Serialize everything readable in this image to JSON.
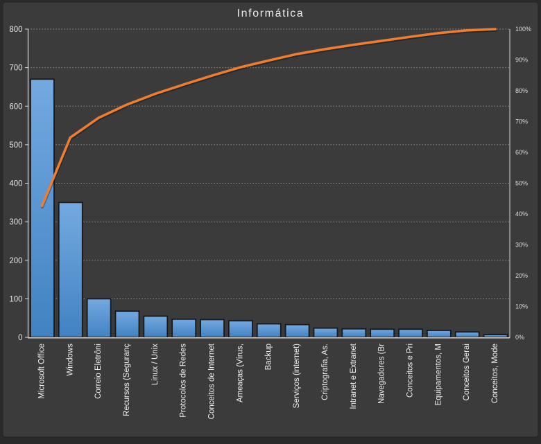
{
  "chart_data": {
    "type": "bar",
    "title": "Informática",
    "categories": [
      "Microsoft Office",
      "Windows",
      "Correio Eletrôni",
      "Recursos (Seguranç",
      "Linux / Unix",
      "Protocolos de Redes",
      "Conceitos de Internet",
      "Ameaças (Vírus,",
      "Backup",
      "Serviços (internet)",
      "Criptografia, As.",
      "Intranet e Extranet",
      "Navegadores (Br",
      "Conceitos e Pri",
      "Equipamentos, M",
      "Conceitos Gerai",
      "Conceitos, Mode"
    ],
    "values": [
      670,
      350,
      100,
      68,
      55,
      47,
      46,
      43,
      35,
      33,
      24,
      22,
      21,
      21,
      18,
      14,
      7
    ],
    "series": [
      {
        "name": "frequency-bars",
        "type": "bar",
        "values": [
          670,
          350,
          100,
          68,
          55,
          47,
          46,
          43,
          35,
          33,
          24,
          22,
          21,
          21,
          18,
          14,
          7
        ]
      },
      {
        "name": "cumulative-percent-line",
        "type": "line",
        "values": [
          42.6,
          64.8,
          71.2,
          75.5,
          79.0,
          82.0,
          84.9,
          87.6,
          89.8,
          91.9,
          93.5,
          94.9,
          96.2,
          97.5,
          98.7,
          99.6,
          100.0
        ]
      }
    ],
    "left_axis": {
      "min": 0,
      "max": 800,
      "tick_step": 100,
      "ticks": [
        "0",
        "100",
        "200",
        "300",
        "400",
        "500",
        "600",
        "700",
        "800"
      ]
    },
    "right_axis": {
      "ticks": [
        "0%",
        "10%",
        "20%",
        "30%",
        "40%",
        "50%",
        "60%",
        "70%",
        "80%",
        "90%",
        "100%"
      ]
    },
    "grid": true,
    "legend": "none",
    "xlabel": "",
    "ylabel": ""
  },
  "colors": {
    "chart_background": "#3b3b3b",
    "outer_background": "#2a2a2a",
    "chart_border": "#262626",
    "bar_fill_top": "#74a9e0",
    "bar_fill_bottom": "#4182c2",
    "bar_border": "#191919",
    "line": "#ed7d31",
    "line_shadow": "rgba(0,0,0,0.30)",
    "axis": "#d9d9d9",
    "grid": "#bfbfbf",
    "text": "#ececec"
  }
}
